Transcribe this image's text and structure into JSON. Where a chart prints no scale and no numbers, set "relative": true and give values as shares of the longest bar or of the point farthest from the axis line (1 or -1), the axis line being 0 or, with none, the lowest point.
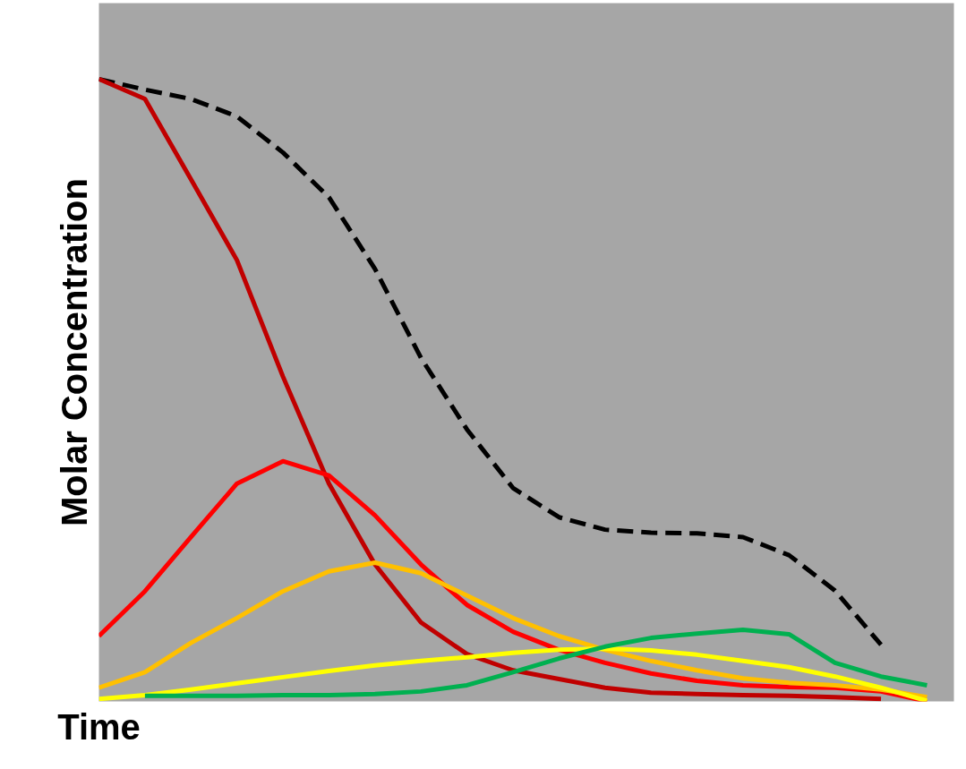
{
  "chart_data": {
    "type": "line",
    "relative": true,
    "xlabel": "Time",
    "ylabel": "Molar Concentration",
    "grid": false,
    "categories": [
      null,
      null,
      null,
      null,
      null,
      null,
      null,
      null,
      null,
      null,
      null,
      null,
      null,
      null,
      null,
      null,
      null,
      null,
      null
    ],
    "series": [
      {
        "color": "#000000",
        "line_style": "dashed",
        "values": [
          1.0,
          0.983,
          0.968,
          0.94,
          0.882,
          0.81,
          0.695,
          0.552,
          0.437,
          0.343,
          0.296,
          0.276,
          0.271,
          0.27,
          0.264,
          0.235,
          0.178,
          0.091,
          null
        ]
      },
      {
        "color": "#c00000",
        "values": [
          1.0,
          0.968,
          0.839,
          0.709,
          0.522,
          0.35,
          0.22,
          0.127,
          0.076,
          0.05,
          0.036,
          0.022,
          0.014,
          0.012,
          0.01,
          0.009,
          0.007,
          0.004,
          null
        ]
      },
      {
        "color": "#ff0000",
        "values": [
          0.105,
          0.177,
          0.264,
          0.35,
          0.386,
          0.363,
          0.299,
          0.22,
          0.155,
          0.112,
          0.083,
          0.062,
          0.045,
          0.033,
          0.026,
          0.023,
          0.022,
          0.016,
          0.0
        ]
      },
      {
        "color": "#ffc000",
        "values": [
          0.022,
          0.047,
          0.094,
          0.134,
          0.177,
          0.209,
          0.223,
          0.206,
          0.17,
          0.134,
          0.105,
          0.083,
          0.065,
          0.05,
          0.037,
          0.03,
          0.026,
          0.019,
          0.007
        ]
      },
      {
        "color": "#ffff00",
        "values": [
          0.004,
          0.01,
          0.019,
          0.029,
          0.039,
          0.049,
          0.058,
          0.065,
          0.071,
          0.078,
          0.083,
          0.085,
          0.082,
          0.075,
          0.065,
          0.055,
          0.04,
          0.022,
          0.001
        ]
      },
      {
        "color": "#00b050",
        "values": [
          null,
          0.009,
          0.009,
          0.009,
          0.01,
          0.01,
          0.012,
          0.016,
          0.026,
          0.047,
          0.069,
          0.088,
          0.102,
          0.109,
          0.115,
          0.108,
          0.062,
          0.04,
          0.026
        ]
      }
    ]
  }
}
